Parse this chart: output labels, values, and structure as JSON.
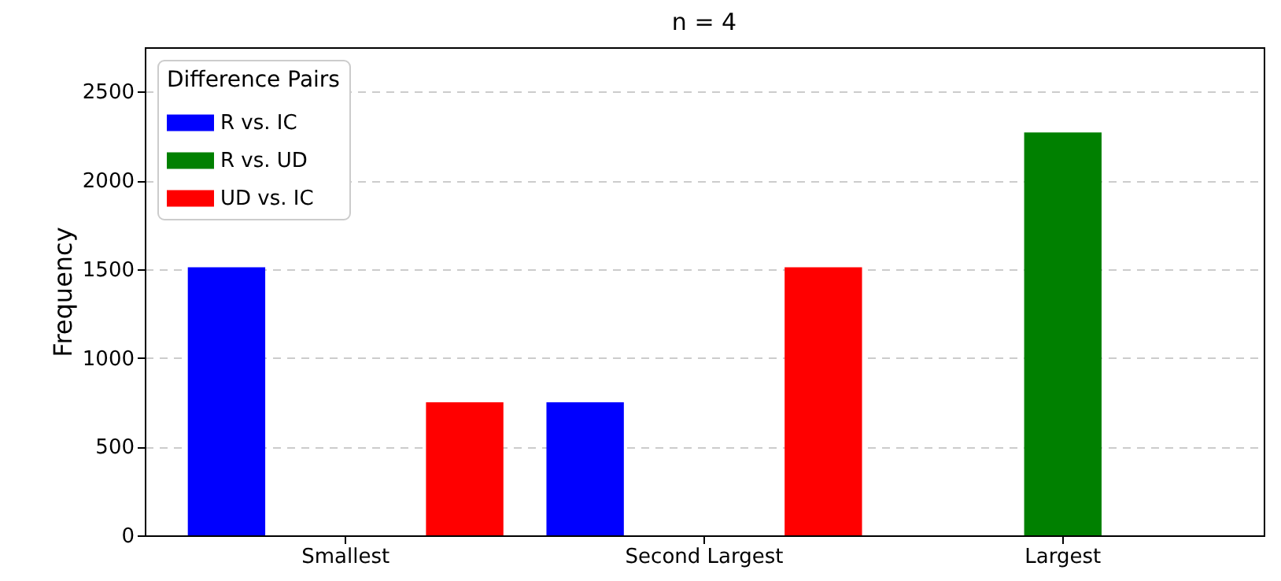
{
  "chart_data": {
    "type": "bar",
    "title": "n = 4",
    "ylabel": "Frequency",
    "legend_title": "Difference Pairs",
    "categories": [
      "Smallest",
      "Second Largest",
      "Largest"
    ],
    "series": [
      {
        "name": "R vs. IC",
        "color": "#0000ff",
        "values": [
          1510,
          750,
          0
        ]
      },
      {
        "name": "R vs. UD",
        "color": "#008000",
        "values": [
          0,
          0,
          2270
        ]
      },
      {
        "name": "UD vs. IC",
        "color": "#ff0000",
        "values": [
          750,
          1510,
          0
        ]
      }
    ],
    "ylim": [
      0,
      2750
    ],
    "yticks": [
      0,
      500,
      1000,
      1500,
      2000,
      2500
    ],
    "grid": "y",
    "legend": "top left"
  }
}
